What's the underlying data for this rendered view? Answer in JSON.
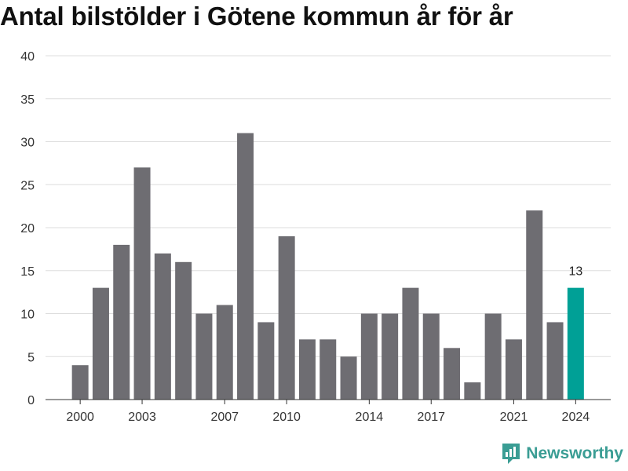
{
  "title": "Antal bilstölder i Götene kommun år för år",
  "brand": {
    "name": "Newsworthy"
  },
  "colors": {
    "bar": "#6e6d72",
    "highlight": "#00a096",
    "grid": "#dddddd",
    "axis": "#333333"
  },
  "chart_data": {
    "type": "bar",
    "title": "Antal bilstölder i Götene kommun år för år",
    "xlabel": "",
    "ylabel": "",
    "ylim": [
      0,
      40
    ],
    "yticks": [
      0,
      5,
      10,
      15,
      20,
      25,
      30,
      35,
      40
    ],
    "categories": [
      "2000",
      "2001",
      "2002",
      "2003",
      "2004",
      "2005",
      "2006",
      "2007",
      "2008",
      "2009",
      "2010",
      "2011",
      "2012",
      "2013",
      "2014",
      "2015",
      "2016",
      "2017",
      "2018",
      "2019",
      "2020",
      "2021",
      "2022",
      "2023",
      "2024"
    ],
    "values": [
      4,
      13,
      18,
      27,
      17,
      16,
      10,
      11,
      31,
      9,
      19,
      7,
      7,
      5,
      10,
      10,
      13,
      10,
      6,
      2,
      10,
      7,
      22,
      9,
      13
    ],
    "xtick_labels": [
      "2000",
      "2003",
      "2007",
      "2010",
      "2014",
      "2017",
      "2021",
      "2024"
    ],
    "highlight": {
      "category": "2024",
      "label": "13"
    },
    "grid": true,
    "legend": "none"
  }
}
